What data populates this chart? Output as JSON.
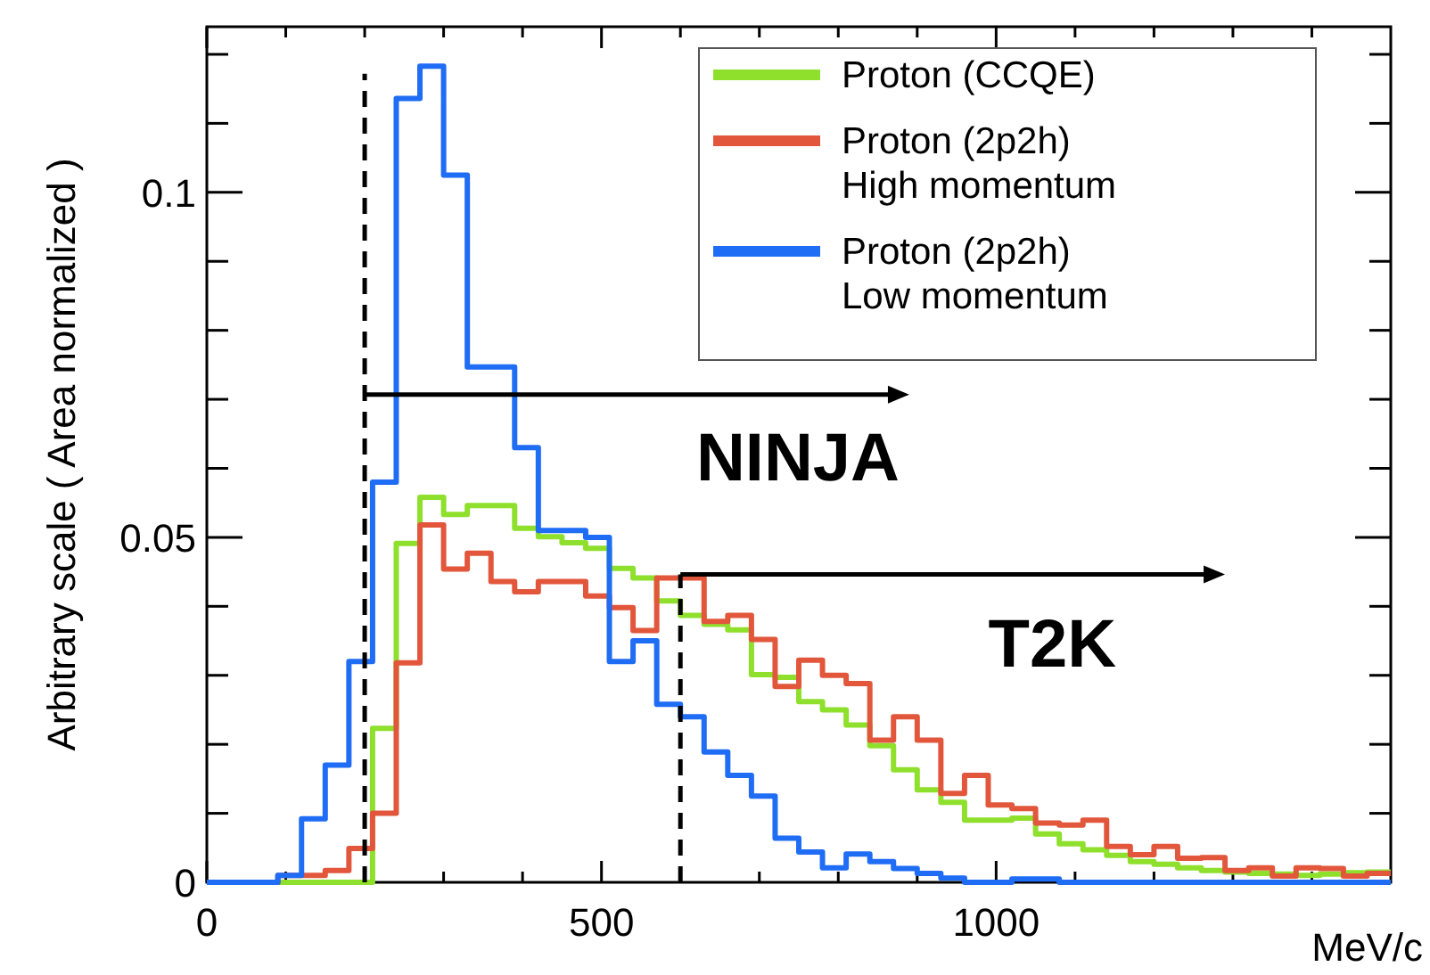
{
  "chart_data": {
    "type": "histogram",
    "xlabel": "MeV/c",
    "ylabel": "Arbitrary scale ( Area normalized )",
    "bins": [
      0,
      30,
      60,
      90,
      120,
      150,
      180,
      210,
      240,
      270,
      300,
      330,
      360,
      390,
      420,
      450,
      480,
      510,
      540,
      570,
      600,
      630,
      660,
      690,
      720,
      750,
      780,
      810,
      840,
      870,
      900,
      930,
      960,
      990,
      1020,
      1050,
      1080,
      1110,
      1140,
      1170,
      1200,
      1230,
      1260,
      1290,
      1320,
      1350,
      1380,
      1410,
      1440,
      1470,
      1500
    ],
    "series": [
      {
        "name": "Proton (CCQE)",
        "color": "#8ee02c",
        "values": [
          0,
          0,
          0,
          0,
          0,
          0,
          0,
          0.0223,
          0.0491,
          0.0558,
          0.0533,
          0.0546,
          0.0546,
          0.0513,
          0.0501,
          0.0492,
          0.0484,
          0.0455,
          0.0441,
          0.0408,
          0.0387,
          0.0374,
          0.0366,
          0.0301,
          0.0297,
          0.0262,
          0.025,
          0.0228,
          0.0198,
          0.0163,
          0.0134,
          0.0116,
          0.009,
          0.009,
          0.0093,
          0.007,
          0.0056,
          0.0047,
          0.0039,
          0.003,
          0.0026,
          0.0021,
          0.0017,
          0.0015,
          0.0013,
          0.0012,
          0.001,
          0.0012,
          0.0014,
          0.0015
        ]
      },
      {
        "name": "Proton (2p2h)\nHigh momentum",
        "color": "#e2573c",
        "values": [
          0,
          0,
          0,
          0.001,
          0.001,
          0.0017,
          0.0049,
          0.01,
          0.0318,
          0.0518,
          0.0454,
          0.0477,
          0.0436,
          0.0421,
          0.0436,
          0.0436,
          0.0415,
          0.0398,
          0.0365,
          0.0441,
          0.0441,
          0.0378,
          0.0387,
          0.0352,
          0.0284,
          0.0322,
          0.03,
          0.0288,
          0.0206,
          0.024,
          0.0206,
          0.0129,
          0.0155,
          0.0112,
          0.0107,
          0.0086,
          0.0083,
          0.009,
          0.0052,
          0.004,
          0.0052,
          0.0035,
          0.0036,
          0.0017,
          0.0021,
          0.0009,
          0.0021,
          0.002,
          0.0009,
          0.0013
        ]
      },
      {
        "name": "Proton (2p2h)\nLow momentum",
        "color": "#1f6cf5",
        "values": [
          0,
          0,
          0,
          0.001,
          0.0092,
          0.017,
          0.032,
          0.058,
          0.1136,
          0.1183,
          0.1025,
          0.0747,
          0.0747,
          0.063,
          0.051,
          0.051,
          0.05,
          0.032,
          0.035,
          0.0258,
          0.024,
          0.0189,
          0.0155,
          0.0125,
          0.0064,
          0.0044,
          0.0021,
          0.0041,
          0.003,
          0.002,
          0.0013,
          0.0006,
          0,
          0,
          0.0005,
          0.0005,
          0,
          0,
          0,
          0,
          0,
          0,
          0,
          0,
          0,
          0,
          0,
          0,
          0,
          0
        ]
      }
    ],
    "xlim": [
      0,
      1500
    ],
    "ylim": [
      0,
      0.124
    ],
    "xticks": [
      0,
      {
        "value": 100,
        "label": null
      },
      {
        "value": 200,
        "label": null
      },
      {
        "value": 300,
        "label": null
      },
      {
        "value": 400,
        "label": null
      },
      500,
      {
        "value": 600,
        "label": null
      },
      {
        "value": 700,
        "label": null
      },
      {
        "value": 800,
        "label": null
      },
      {
        "value": 900,
        "label": null
      },
      1000,
      {
        "value": 1100,
        "label": null
      },
      {
        "value": 1200,
        "label": null
      },
      {
        "value": 1300,
        "label": null
      },
      {
        "value": 1400,
        "label": null
      }
    ],
    "yticks": [
      0,
      {
        "value": 0.01,
        "label": null
      },
      {
        "value": 0.02,
        "label": null
      },
      {
        "value": 0.03,
        "label": null
      },
      {
        "value": 0.04,
        "label": null
      },
      0.05,
      {
        "value": 0.06,
        "label": null
      },
      {
        "value": 0.07,
        "label": null
      },
      {
        "value": 0.08,
        "label": null
      },
      {
        "value": 0.09,
        "label": null
      },
      0.1,
      {
        "value": 0.11,
        "label": null
      },
      {
        "value": 0.12,
        "label": null
      }
    ],
    "ref_lines": [
      {
        "axis": "x",
        "value": 200,
        "color": "#000000",
        "line_style": "dashed"
      },
      {
        "axis": "x",
        "value": 600,
        "color": "#000000",
        "line_style": "dashed"
      }
    ],
    "annotations": [
      "NINJA",
      "T2K"
    ],
    "legend": "top right",
    "grid": false
  }
}
